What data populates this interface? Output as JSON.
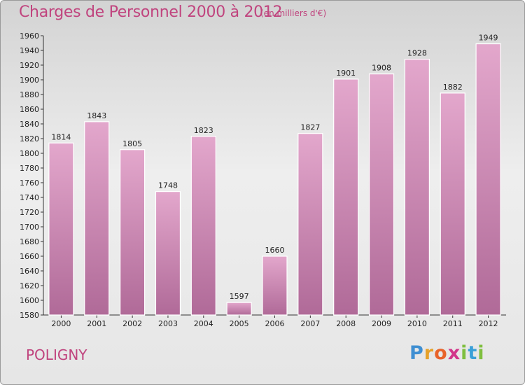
{
  "header": {
    "title": "Charges de Personnel 2000 à 2012",
    "subtitle": "(en milliers d'€)"
  },
  "footer": {
    "commune": "POLIGNY",
    "logo": [
      "P",
      "r",
      "o",
      "x",
      "i",
      "t",
      "i"
    ]
  },
  "colors": {
    "bar_top": "#e3a7cc",
    "bar_bottom": "#b06a98",
    "bar_edge": "#ffffff",
    "text_accent": "#c0447e"
  },
  "chart_data": {
    "type": "bar",
    "categories": [
      "2000",
      "2001",
      "2002",
      "2003",
      "2004",
      "2005",
      "2006",
      "2007",
      "2008",
      "2009",
      "2010",
      "2011",
      "2012"
    ],
    "values": [
      1814,
      1843,
      1805,
      1748,
      1823,
      1597,
      1660,
      1827,
      1901,
      1908,
      1928,
      1882,
      1949
    ],
    "title": "Charges de Personnel 2000 à 2012",
    "subtitle": "(en milliers d'€)",
    "ylim": [
      1580,
      1960
    ],
    "yticks": [
      1580,
      1600,
      1620,
      1640,
      1660,
      1680,
      1700,
      1720,
      1740,
      1760,
      1780,
      1800,
      1820,
      1840,
      1860,
      1880,
      1900,
      1920,
      1940,
      1960
    ],
    "grid": false,
    "legend": "none"
  }
}
